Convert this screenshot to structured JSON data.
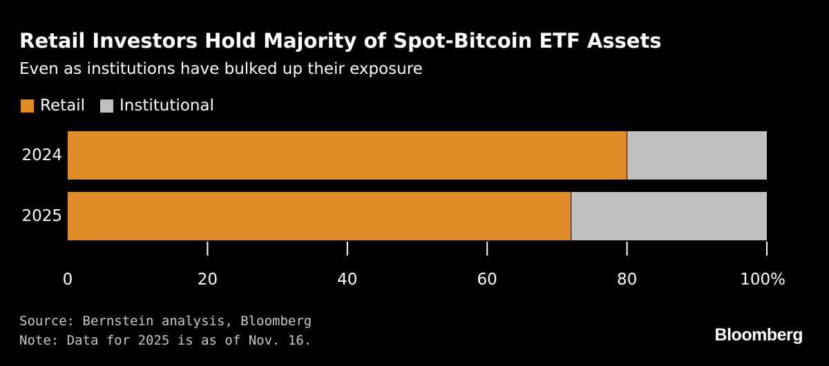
{
  "colors": {
    "background": "#000000",
    "retail": "#e08c28",
    "institutional": "#c0c0c0",
    "text": "#ffffff",
    "footnote": "#c8c8c8"
  },
  "brand": "Bloomberg",
  "footer": {
    "source": "Source: Bernstein analysis, Bloomberg",
    "note": "Note: Data for 2025 is as of Nov. 16."
  },
  "chart_data": {
    "type": "bar",
    "orientation": "horizontal",
    "stacked": true,
    "title": "Retail Investors Hold Majority of Spot-Bitcoin ETF Assets",
    "subtitle": "Even as institutions have bulked up their exposure",
    "xlabel": "",
    "ylabel": "",
    "categories": [
      "2024",
      "2025"
    ],
    "series": [
      {
        "name": "Retail",
        "values": [
          80,
          72
        ]
      },
      {
        "name": "Institutional",
        "values": [
          20,
          28
        ]
      }
    ],
    "xlim": [
      0,
      100
    ],
    "xticks": [
      0,
      20,
      40,
      60,
      80,
      100
    ],
    "xtick_labels": [
      "0",
      "20",
      "40",
      "60",
      "80",
      "100%"
    ],
    "grid": false,
    "legend_position": "top-left"
  }
}
